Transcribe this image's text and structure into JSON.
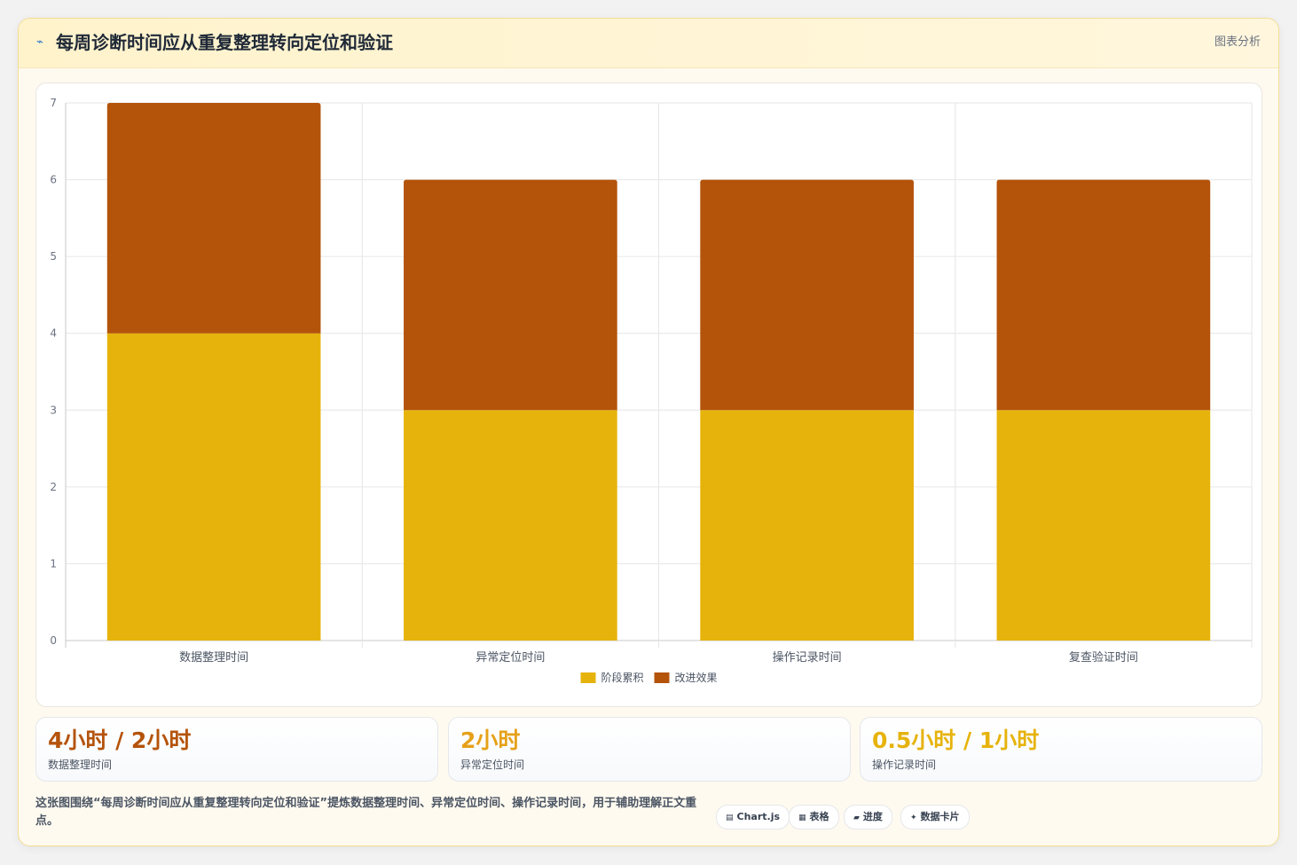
{
  "header": {
    "icon": "line-chart-icon",
    "title": "每周诊断时间应从重复整理转向定位和验证",
    "tag": "图表分析"
  },
  "chart_data": {
    "type": "bar",
    "stacked": true,
    "categories": [
      "数据整理时间",
      "异常定位时间",
      "操作记录时间",
      "复查验证时间"
    ],
    "series": [
      {
        "name": "阶段累积",
        "values": [
          4,
          3,
          3,
          3
        ],
        "color": "#e6b30c"
      },
      {
        "name": "改进效果",
        "values": [
          3,
          3,
          3,
          3
        ],
        "color": "#b4530a"
      }
    ],
    "ylim": [
      0,
      7
    ],
    "yticks": [
      0,
      1,
      2,
      3,
      4,
      5,
      6,
      7
    ],
    "grid": true,
    "legend": "bottom",
    "title": "",
    "xlabel": "",
    "ylabel": ""
  },
  "stats": [
    {
      "value": "4小时 / 2小时",
      "label": "数据整理时间",
      "color": "#b4530a"
    },
    {
      "value": "2小时",
      "label": "异常定位时间",
      "color": "#e6a11a"
    },
    {
      "value": "0.5小时 / 1小时",
      "label": "操作记录时间",
      "color": "#e6b30c"
    }
  ],
  "description": "这张图围绕“每周诊断时间应从重复整理转向定位和验证”提炼数据整理时间、异常定位时间、操作记录时间，用于辅助理解正文重点。",
  "pills": [
    {
      "icon": "chart-icon",
      "label": "Chart.js"
    },
    {
      "icon": "table-icon",
      "label": "表格"
    },
    {
      "icon": "progress-icon",
      "label": "进度"
    },
    {
      "icon": "sparkle-icon",
      "label": "数据卡片"
    }
  ]
}
